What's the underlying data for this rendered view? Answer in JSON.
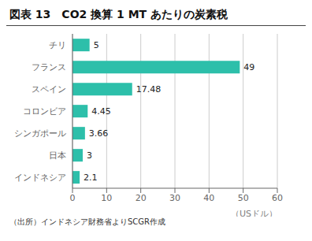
{
  "chart_data": {
    "type": "bar",
    "orientation": "horizontal",
    "title": "図表 13　CO2 換算 1 MT あたりの炭素税",
    "categories": [
      "インドネシア",
      "日本",
      "シンガポール",
      "コロンビア",
      "スペイン",
      "フランス",
      "チリ"
    ],
    "values": [
      2.1,
      3,
      3.66,
      4.45,
      17.48,
      49,
      5
    ],
    "color": "#2dbfaa",
    "xlim": [
      0,
      60
    ],
    "xticks": [
      0,
      10,
      20,
      30,
      40,
      50,
      60
    ],
    "xlabel": "（USドル）",
    "annotations": [
      "（出所）インドネシア財務省よりSCGR作成"
    ],
    "grid": true,
    "data_labels": true
  }
}
